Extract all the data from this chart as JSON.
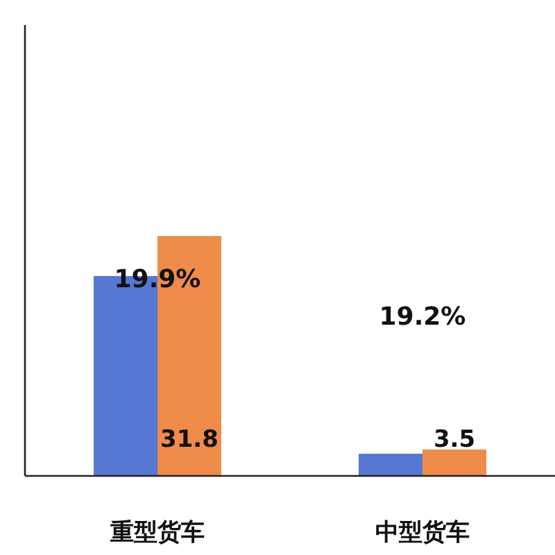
{
  "chart_data": {
    "type": "bar",
    "categories": [
      "重型货车",
      "中型货车"
    ],
    "series": [
      {
        "color": "#5677d2",
        "values": [
          26.5,
          2.94
        ]
      },
      {
        "color": "#ef8c49",
        "values": [
          31.8,
          3.5
        ],
        "value_labels": [
          "31.8",
          "3.5"
        ]
      }
    ],
    "annotations": [
      "19.9%",
      "19.2%"
    ]
  }
}
